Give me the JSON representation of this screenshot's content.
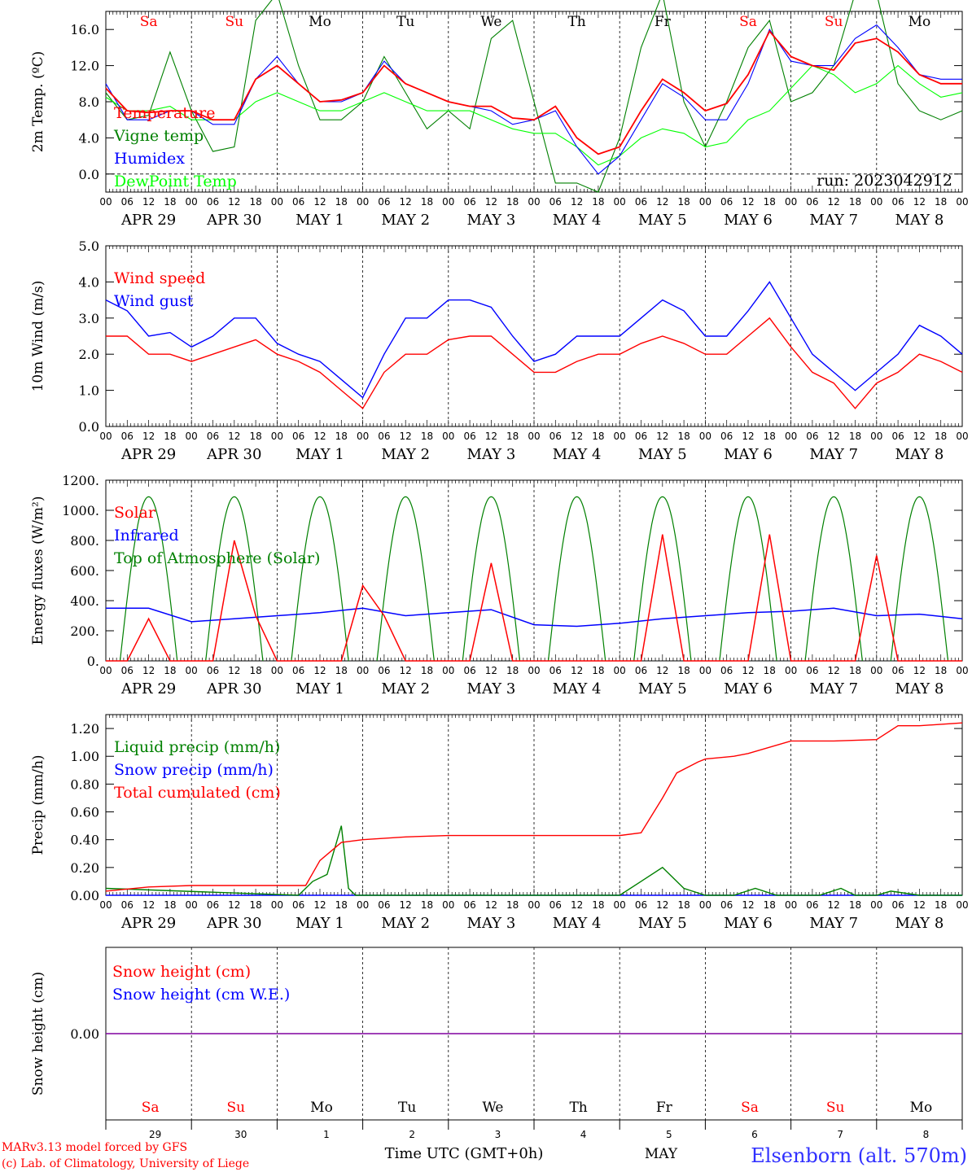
{
  "chart_data": [
    {
      "type": "line",
      "ylabel": "2m Temp. (ºC)",
      "yticks": [
        "0.0",
        "4.0",
        "8.0",
        "12.0",
        "16.0"
      ],
      "ylim": [
        -2,
        18
      ],
      "legend": [
        "Temperature",
        "Vigne temp",
        "Humidex",
        "DewPoint Temp"
      ],
      "run_label": "run: 2023042912",
      "day_labels": [
        "Sa",
        "Su",
        "Mo",
        "Tu",
        "We",
        "Th",
        "Fr",
        "Sa",
        "Su",
        "Mo"
      ],
      "series": [
        {
          "name": "Temperature",
          "color": "#ff0000",
          "x": [
            0,
            6,
            12,
            18,
            24,
            30,
            36,
            42,
            48,
            54,
            60,
            66,
            72,
            78,
            84,
            90,
            96,
            102,
            108,
            114,
            120,
            126,
            132,
            138,
            144,
            150,
            156,
            162,
            168,
            174,
            180,
            186,
            192,
            198,
            204,
            210,
            216,
            222,
            228,
            234,
            240
          ],
          "values": [
            9.5,
            7,
            6.8,
            7,
            7,
            6,
            6,
            10.5,
            12,
            10,
            8,
            8.2,
            9,
            12,
            10,
            9,
            8,
            7.5,
            7.5,
            6.2,
            6,
            7.5,
            4,
            2.2,
            3,
            7,
            10.5,
            9,
            7,
            7.8,
            11,
            15.8,
            13,
            12,
            11.5,
            14.5,
            15,
            13.5,
            11,
            10,
            10
          ]
        },
        {
          "name": "Vigne temp",
          "color": "#008000",
          "x": [
            0,
            6,
            12,
            18,
            24,
            30,
            36,
            42,
            48,
            54,
            60,
            66,
            72,
            78,
            84,
            90,
            96,
            102,
            108,
            114,
            120,
            126,
            132,
            138,
            144,
            150,
            156,
            162,
            168,
            174,
            180,
            186,
            192,
            198,
            204,
            210,
            216,
            222,
            228,
            234,
            240
          ],
          "values": [
            9,
            6,
            6.5,
            13.5,
            7,
            2.5,
            3,
            17,
            20,
            12,
            6,
            6,
            8,
            13,
            9,
            5,
            7,
            5,
            15,
            17,
            8,
            -1,
            -1,
            -2,
            4,
            14,
            20,
            8,
            3,
            8,
            14,
            17,
            8,
            9,
            12,
            20,
            20,
            10,
            7,
            6,
            7
          ]
        },
        {
          "name": "Humidex",
          "color": "#0000ff",
          "x": [
            0,
            6,
            12,
            18,
            24,
            30,
            36,
            42,
            48,
            54,
            60,
            66,
            72,
            78,
            84,
            90,
            96,
            102,
            108,
            114,
            120,
            126,
            132,
            138,
            144,
            150,
            156,
            162,
            168,
            174,
            180,
            186,
            192,
            198,
            204,
            210,
            216,
            222,
            228,
            234,
            240
          ],
          "values": [
            10,
            6,
            6,
            7,
            7,
            5.5,
            5.5,
            10.5,
            13,
            10,
            8,
            8,
            9,
            12.5,
            10,
            9,
            8,
            7.5,
            7,
            5.5,
            6,
            7,
            3,
            0,
            2,
            6,
            10,
            8.5,
            6,
            6,
            10,
            16,
            12.5,
            12,
            12,
            15,
            16.5,
            14,
            11,
            10.5,
            10.5
          ]
        },
        {
          "name": "DewPoint Temp",
          "color": "#00ff00",
          "x": [
            0,
            6,
            12,
            18,
            24,
            30,
            36,
            42,
            48,
            54,
            60,
            66,
            72,
            78,
            84,
            90,
            96,
            102,
            108,
            114,
            120,
            126,
            132,
            138,
            144,
            150,
            156,
            162,
            168,
            174,
            180,
            186,
            192,
            198,
            204,
            210,
            216,
            222,
            228,
            234,
            240
          ],
          "values": [
            8.5,
            7,
            7,
            7.5,
            6,
            6,
            6,
            8,
            9,
            8,
            7,
            7,
            8,
            9,
            8,
            7,
            7,
            7,
            6,
            5,
            4.5,
            4.5,
            3,
            1,
            2,
            4,
            5,
            4.5,
            3,
            3.5,
            6,
            7,
            9.5,
            12,
            11,
            9,
            10,
            12,
            10,
            8.5,
            9
          ]
        }
      ]
    },
    {
      "type": "line",
      "ylabel": "10m Wind (m/s)",
      "yticks": [
        "0.0",
        "1.0",
        "2.0",
        "3.0",
        "4.0",
        "5.0"
      ],
      "ylim": [
        0,
        5
      ],
      "legend": [
        "Wind speed",
        "Wind gust"
      ],
      "series": [
        {
          "name": "Wind speed",
          "color": "#ff0000",
          "x": [
            0,
            6,
            12,
            18,
            24,
            30,
            36,
            42,
            48,
            54,
            60,
            66,
            72,
            78,
            84,
            90,
            96,
            102,
            108,
            114,
            120,
            126,
            132,
            138,
            144,
            150,
            156,
            162,
            168,
            174,
            180,
            186,
            192,
            198,
            204,
            210,
            216,
            222,
            228,
            234,
            240
          ],
          "values": [
            2.5,
            2.5,
            2,
            2,
            1.8,
            2,
            2.2,
            2.4,
            2,
            1.8,
            1.5,
            1,
            0.5,
            1.5,
            2,
            2,
            2.4,
            2.5,
            2.5,
            2,
            1.5,
            1.5,
            1.8,
            2,
            2,
            2.3,
            2.5,
            2.3,
            2,
            2,
            2.5,
            3,
            2.2,
            1.5,
            1.2,
            0.5,
            1.2,
            1.5,
            2,
            1.8,
            1.5
          ]
        },
        {
          "name": "Wind gust",
          "color": "#0000ff",
          "x": [
            0,
            6,
            12,
            18,
            24,
            30,
            36,
            42,
            48,
            54,
            60,
            66,
            72,
            78,
            84,
            90,
            96,
            102,
            108,
            114,
            120,
            126,
            132,
            138,
            144,
            150,
            156,
            162,
            168,
            174,
            180,
            186,
            192,
            198,
            204,
            210,
            216,
            222,
            228,
            234,
            240
          ],
          "values": [
            3.5,
            3.2,
            2.5,
            2.6,
            2.2,
            2.5,
            3,
            3,
            2.3,
            2,
            1.8,
            1.3,
            0.8,
            2,
            3,
            3,
            3.5,
            3.5,
            3.3,
            2.5,
            1.8,
            2,
            2.5,
            2.5,
            2.5,
            3,
            3.5,
            3.2,
            2.5,
            2.5,
            3.2,
            4,
            3,
            2,
            1.5,
            1,
            1.5,
            2,
            2.8,
            2.5,
            2
          ]
        }
      ]
    },
    {
      "type": "line",
      "ylabel": "Energy fluxes (W/m²)",
      "yticks": [
        "0.",
        "200.",
        "400.",
        "600.",
        "800.",
        "1000.",
        "1200."
      ],
      "ylim": [
        0,
        1200
      ],
      "legend": [
        "Solar",
        "Infrared",
        "Top of Atmosphere (Solar)"
      ],
      "series": [
        {
          "name": "Solar",
          "color": "#ff0000",
          "x": [
            0,
            6,
            12,
            18,
            24,
            30,
            36,
            42,
            48,
            54,
            60,
            66,
            72,
            78,
            84,
            90,
            96,
            102,
            108,
            114,
            120,
            126,
            132,
            138,
            144,
            150,
            156,
            162,
            168,
            174,
            180,
            186,
            192,
            198,
            204,
            210,
            216,
            222,
            228,
            234,
            240
          ],
          "values": [
            0,
            0,
            280,
            0,
            0,
            0,
            800,
            300,
            0,
            0,
            0,
            0,
            500,
            300,
            0,
            0,
            0,
            0,
            650,
            0,
            0,
            0,
            0,
            0,
            0,
            0,
            840,
            0,
            0,
            0,
            0,
            840,
            0,
            0,
            0,
            0,
            700,
            0,
            0,
            0,
            0
          ]
        },
        {
          "name": "Infrared",
          "color": "#0000ff",
          "x": [
            0,
            12,
            24,
            36,
            48,
            60,
            72,
            84,
            96,
            108,
            120,
            132,
            144,
            156,
            168,
            180,
            192,
            204,
            216,
            228,
            240
          ],
          "values": [
            350,
            350,
            260,
            280,
            300,
            320,
            350,
            300,
            320,
            340,
            240,
            230,
            250,
            280,
            300,
            320,
            330,
            350,
            300,
            310,
            280
          ]
        },
        {
          "name": "Top of Atmosphere (Solar)",
          "color": "#008000",
          "peak": 1090
        }
      ]
    },
    {
      "type": "line",
      "ylabel": "Precip (mm/h)",
      "yticks": [
        "0.00",
        "0.20",
        "0.40",
        "0.60",
        "0.80",
        "1.00",
        "1.20"
      ],
      "ylim": [
        0,
        1.3
      ],
      "legend": [
        "Liquid precip (mm/h)",
        "Snow precip (mm/h)",
        "Total cumulated (cm)"
      ],
      "series": [
        {
          "name": "Total cumulated (cm)",
          "color": "#ff0000",
          "x": [
            0,
            12,
            24,
            36,
            48,
            56,
            60,
            66,
            72,
            84,
            96,
            108,
            120,
            132,
            144,
            150,
            156,
            160,
            166,
            168,
            176,
            180,
            192,
            200,
            204,
            216,
            222,
            228,
            240
          ],
          "values": [
            0.03,
            0.06,
            0.07,
            0.07,
            0.07,
            0.07,
            0.25,
            0.38,
            0.4,
            0.42,
            0.43,
            0.43,
            0.43,
            0.43,
            0.43,
            0.45,
            0.7,
            0.88,
            0.96,
            0.98,
            1.0,
            1.02,
            1.11,
            1.11,
            1.11,
            1.12,
            1.22,
            1.22,
            1.24
          ]
        },
        {
          "name": "Liquid precip (mm/h)",
          "color": "#008000",
          "x": [
            0,
            54,
            58,
            62,
            66,
            68,
            70,
            72,
            84,
            144,
            150,
            156,
            162,
            168,
            176,
            182,
            188,
            200,
            206,
            210,
            216,
            220,
            228,
            240
          ],
          "values": [
            0.05,
            0,
            0.1,
            0.15,
            0.5,
            0.05,
            0,
            0,
            0,
            0,
            0.1,
            0.2,
            0.05,
            0,
            0,
            0.05,
            0,
            0,
            0.05,
            0,
            0,
            0.03,
            0,
            0
          ]
        },
        {
          "name": "Snow precip (mm/h)",
          "color": "#0000ff",
          "x": [
            0,
            240
          ],
          "values": [
            0,
            0
          ]
        }
      ]
    },
    {
      "type": "line",
      "ylabel": "Snow height (cm)",
      "yticks": [
        "0.00"
      ],
      "legend": [
        "Snow height (cm)",
        "Snow height (cm W.E.)"
      ],
      "series": [
        {
          "name": "Snow height (cm)",
          "color": "#ff0000",
          "x": [
            0,
            240
          ],
          "values": [
            0,
            0
          ]
        }
      ]
    }
  ],
  "x_axis": {
    "hour_ticks": [
      "00",
      "06",
      "12",
      "18"
    ],
    "end_tick": "00",
    "dates": [
      "APR 29",
      "APR 30",
      "MAY  1",
      "MAY  2",
      "MAY  3",
      "MAY  4",
      "MAY  5",
      "MAY  6",
      "MAY  7",
      "MAY  8"
    ],
    "bottom_day_numbers": [
      "29",
      "30",
      "1",
      "2",
      "3",
      "4",
      "5",
      "6",
      "7",
      "8"
    ],
    "bottom_day_names": [
      "Sa",
      "Su",
      "Mo",
      "Tu",
      "We",
      "Th",
      "Fr",
      "Sa",
      "Su",
      "Mo"
    ],
    "bottom_month": "MAY",
    "xlabel": "Time UTC (GMT+0h)"
  },
  "footer": {
    "model": "MARv3.13 model forced by GFS",
    "copyright": "(c) Lab. of Climatology, University of Liege",
    "station": "Elsenborn (alt. 570m)"
  }
}
